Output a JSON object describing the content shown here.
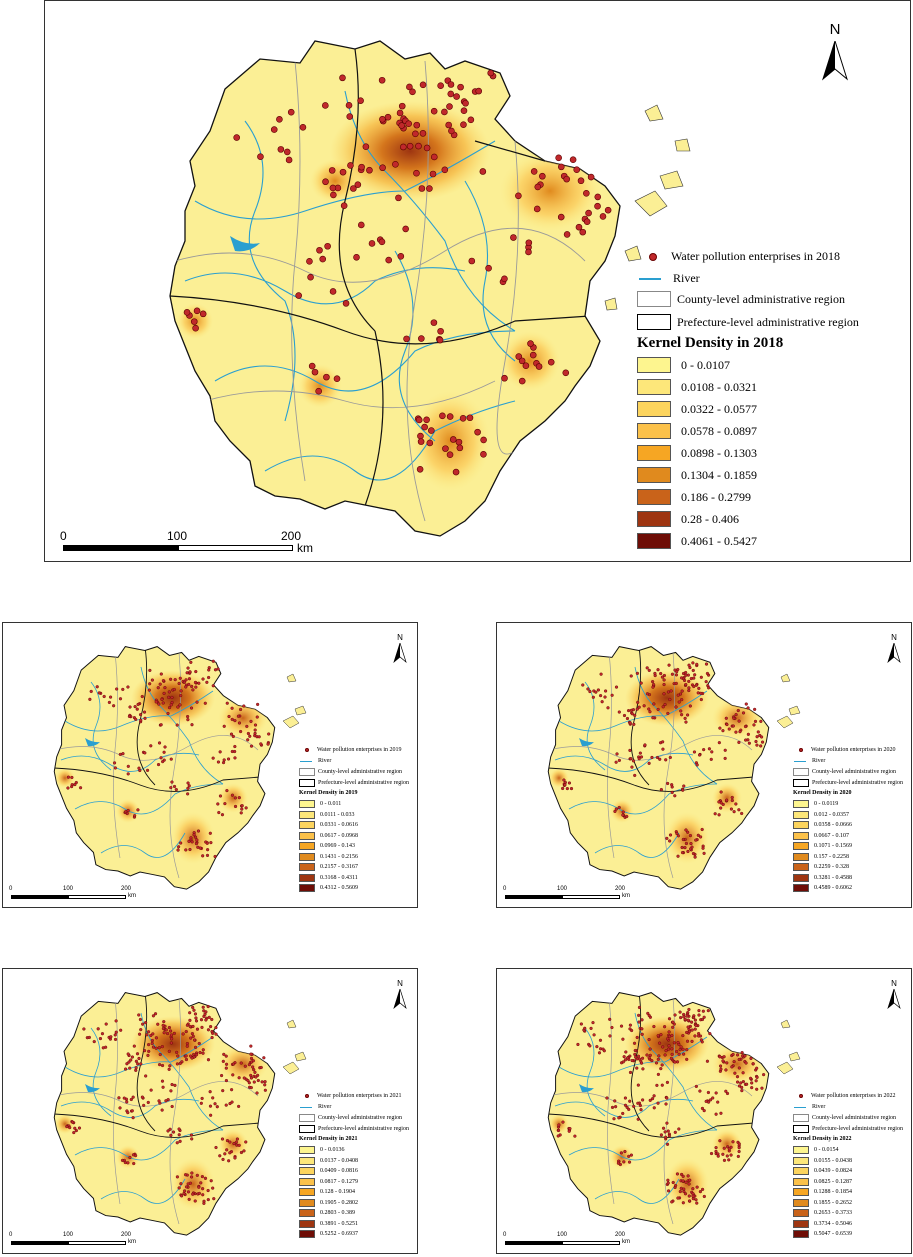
{
  "maps": [
    {
      "year": "2018",
      "north_label": "N",
      "legend": {
        "enterprises": "Water pollution enterprises in 2018",
        "river": "River",
        "county": "County-level administrative region",
        "prefecture": "Prefecture-level administrative region",
        "title": "Kernel Density in 2018",
        "classes": [
          "0 - 0.0107",
          "0.0108 - 0.0321",
          "0.0322 - 0.0577",
          "0.0578 - 0.0897",
          "0.0898 - 0.1303",
          "0.1304 - 0.1859",
          "0.186 - 0.2799",
          "0.28 - 0.406",
          "0.4061 - 0.5427"
        ]
      },
      "scale": {
        "ticks": [
          "0",
          "100",
          "200"
        ],
        "unit": "km"
      }
    },
    {
      "year": "2019",
      "north_label": "N",
      "legend": {
        "enterprises": "Water pollution enterprises in 2019",
        "river": "River",
        "county": "County-level administrative region",
        "prefecture": "Prefecture-level administrative region",
        "title": "Kernel Density in 2019",
        "classes": [
          "0 - 0.011",
          "0.0111 - 0.033",
          "0.0331 - 0.0616",
          "0.0617 - 0.0968",
          "0.0969 - 0.143",
          "0.1431 - 0.2156",
          "0.2157 - 0.3167",
          "0.3168 - 0.4311",
          "0.4312 - 0.5609"
        ]
      },
      "scale": {
        "ticks": [
          "0",
          "100",
          "200"
        ],
        "unit": "km"
      }
    },
    {
      "year": "2020",
      "north_label": "N",
      "legend": {
        "enterprises": "Water pollution enterprises in 2020",
        "river": "River",
        "county": "County-level administrative region",
        "prefecture": "Prefecture-level administrative region",
        "title": "Kernel Density in 2020",
        "classes": [
          "0 - 0.0119",
          "0.012 - 0.0357",
          "0.0358 - 0.0666",
          "0.0667 - 0.107",
          "0.1071 - 0.1569",
          "0.157 - 0.2258",
          "0.2259 - 0.328",
          "0.3281 - 0.4588",
          "0.4589 - 0.6062"
        ]
      },
      "scale": {
        "ticks": [
          "0",
          "100",
          "200"
        ],
        "unit": "km"
      }
    },
    {
      "year": "2021",
      "north_label": "N",
      "legend": {
        "enterprises": "Water pollution enterprises in 2021",
        "river": "River",
        "county": "County-level administrative region",
        "prefecture": "Prefecture-level administrative region",
        "title": "Kernel Density in 2021",
        "classes": [
          "0 - 0.0136",
          "0.0137 - 0.0408",
          "0.0409 - 0.0816",
          "0.0817 - 0.1279",
          "0.128 - 0.1904",
          "0.1905 - 0.2802",
          "0.2803 - 0.389",
          "0.3891 - 0.5251",
          "0.5252 - 0.6937"
        ]
      },
      "scale": {
        "ticks": [
          "0",
          "100",
          "200"
        ],
        "unit": "km"
      }
    },
    {
      "year": "2022",
      "north_label": "N",
      "legend": {
        "enterprises": "Water pollution enterprises in 2022",
        "river": "River",
        "county": "County-level administrative region",
        "prefecture": "Prefecture-level administrative region",
        "title": "Kernel Density in 2022",
        "classes": [
          "0 - 0.0154",
          "0.0155 - 0.0438",
          "0.0439 - 0.0824",
          "0.0825 - 0.1287",
          "0.1288 - 0.1854",
          "0.1855 - 0.2652",
          "0.2653 - 0.3733",
          "0.3734 - 0.5046",
          "0.5047 - 0.6539"
        ]
      },
      "scale": {
        "ticks": [
          "0",
          "100",
          "200"
        ],
        "unit": "km"
      }
    }
  ],
  "colors": {
    "density_ramp": [
      "#fdf58f",
      "#fde77a",
      "#fcd45e",
      "#fbc14a",
      "#f6a623",
      "#e08a1e",
      "#c9631a",
      "#9e3511",
      "#6e0d06"
    ],
    "enterprise_point": "#c0282b",
    "river": "#2a9fd0",
    "county_boundary": "#9a9a9a",
    "prefecture_boundary": "#111111",
    "land_base": "#fbef95"
  }
}
